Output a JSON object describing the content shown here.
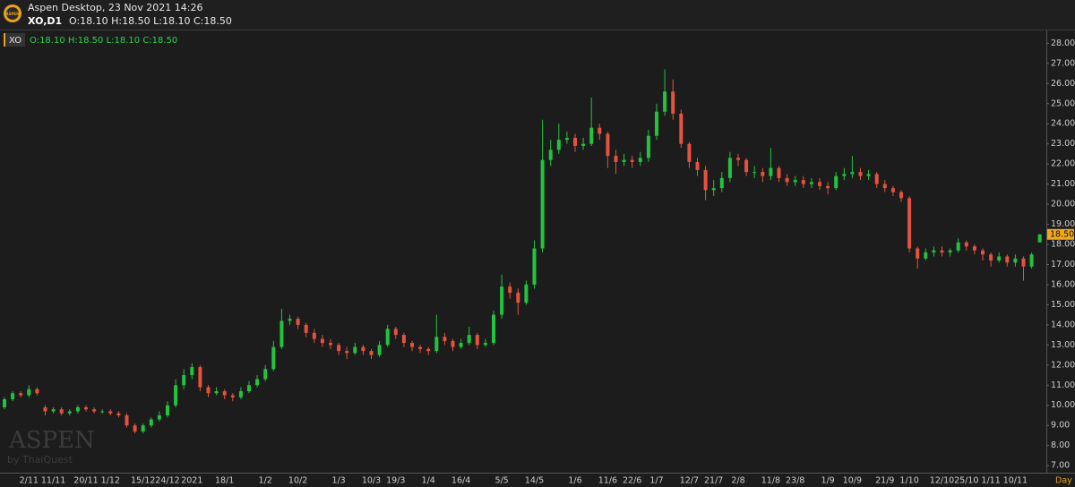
{
  "header": {
    "logo_text": "ASPEN",
    "app": "Aspen Desktop, 23 Nov 2021 14:26",
    "symbol": "XO,D1",
    "ohlc": "O:18.10 H:18.50 L:18.10 C:18.50"
  },
  "chart_data": {
    "type": "candlestick",
    "symbol_tag": "XO",
    "legend_ohlc": "O:18.10 H:18.50 L:18.10 C:18.50",
    "last_price": {
      "value": 18.5,
      "label": "18.50"
    },
    "period_label": "Day",
    "watermark": "ASPEN",
    "watermark_sub": "by ThaiQuest",
    "up_color": "#22c43f",
    "down_color": "#e5533f",
    "categories": [
      null,
      null,
      null,
      "2/11",
      null,
      null,
      "11/11",
      null,
      null,
      null,
      "20/11",
      null,
      null,
      "1/12",
      null,
      null,
      null,
      "15/12",
      null,
      null,
      "24/12",
      null,
      null,
      "2021",
      null,
      null,
      null,
      "18/1",
      null,
      null,
      null,
      null,
      "1/2",
      null,
      null,
      null,
      "10/2",
      null,
      null,
      null,
      null,
      "1/3",
      null,
      null,
      null,
      "10/3",
      null,
      null,
      "19/3",
      null,
      null,
      null,
      "1/4",
      null,
      null,
      null,
      "16/4",
      null,
      null,
      null,
      null,
      "5/5",
      null,
      null,
      null,
      "14/5",
      null,
      null,
      null,
      null,
      "1/6",
      null,
      null,
      null,
      "11/6",
      null,
      null,
      "22/6",
      null,
      null,
      "1/7",
      null,
      null,
      null,
      "12/7",
      null,
      null,
      "21/7",
      null,
      null,
      "2/8",
      null,
      null,
      null,
      "11/8",
      null,
      null,
      "23/8",
      null,
      null,
      null,
      "1/9",
      null,
      null,
      "10/9",
      null,
      null,
      null,
      "21/9",
      null,
      null,
      "1/10",
      null,
      null,
      null,
      "12/10",
      null,
      null,
      "25/10",
      null,
      null,
      "1/11",
      null,
      null,
      "10/11",
      null,
      null,
      null
    ],
    "open": [
      9.9,
      10.3,
      10.6,
      10.5,
      10.8,
      9.9,
      9.7,
      9.8,
      9.6,
      9.7,
      9.9,
      9.8,
      9.7,
      9.7,
      9.6,
      9.5,
      9.0,
      8.7,
      9.0,
      9.3,
      9.5,
      10.0,
      11.0,
      11.5,
      11.9,
      10.9,
      10.6,
      10.7,
      10.5,
      10.4,
      10.7,
      11.0,
      11.3,
      11.8,
      12.9,
      14.2,
      14.3,
      14.0,
      13.6,
      13.3,
      13.1,
      13.0,
      12.7,
      12.6,
      12.9,
      12.7,
      12.5,
      13.0,
      13.8,
      13.5,
      13.1,
      12.9,
      12.8,
      12.7,
      13.4,
      13.2,
      12.9,
      13.1,
      13.5,
      13.0,
      13.1,
      14.5,
      15.9,
      15.6,
      15.1,
      16.0,
      17.8,
      22.2,
      22.7,
      23.2,
      23.3,
      22.9,
      23.0,
      23.8,
      23.5,
      22.4,
      22.1,
      22.2,
      22.1,
      22.3,
      23.4,
      24.6,
      25.6,
      24.5,
      23.0,
      22.1,
      21.7,
      20.7,
      20.8,
      21.3,
      22.3,
      22.2,
      21.6,
      21.6,
      21.4,
      21.8,
      21.3,
      21.1,
      21.2,
      21.0,
      21.1,
      20.9,
      20.8,
      21.4,
      21.5,
      21.6,
      21.4,
      21.5,
      21.0,
      20.8,
      20.6,
      20.3,
      17.8,
      17.3,
      17.6,
      17.7,
      17.6,
      17.7,
      18.1,
      17.9,
      17.7,
      17.5,
      17.2,
      17.4,
      17.1,
      17.3,
      16.9,
      18.1
    ],
    "high": [
      10.4,
      10.7,
      10.7,
      11.0,
      10.9,
      10.0,
      9.9,
      9.9,
      9.8,
      10.0,
      10.0,
      9.9,
      9.8,
      9.8,
      9.7,
      9.6,
      9.1,
      9.1,
      9.4,
      9.7,
      10.2,
      11.3,
      11.8,
      12.1,
      12.0,
      11.0,
      10.9,
      10.8,
      10.6,
      10.9,
      11.2,
      11.5,
      12.0,
      13.2,
      14.8,
      14.5,
      14.4,
      14.1,
      13.8,
      13.5,
      13.3,
      13.1,
      12.9,
      13.1,
      13.0,
      12.8,
      13.2,
      14.0,
      13.9,
      13.6,
      13.2,
      13.0,
      12.9,
      14.5,
      13.6,
      13.3,
      13.3,
      13.9,
      13.6,
      13.3,
      14.7,
      16.5,
      16.1,
      15.8,
      16.2,
      18.2,
      24.2,
      23.2,
      24.0,
      23.6,
      23.5,
      23.3,
      25.3,
      24.0,
      23.6,
      22.7,
      22.5,
      22.4,
      22.6,
      23.7,
      25.0,
      26.7,
      26.2,
      24.7,
      23.1,
      22.3,
      21.9,
      21.2,
      21.6,
      22.6,
      22.5,
      22.3,
      21.9,
      21.8,
      22.8,
      21.9,
      21.5,
      21.4,
      21.4,
      21.3,
      21.3,
      21.1,
      21.6,
      21.8,
      22.4,
      21.8,
      21.7,
      21.6,
      21.2,
      20.9,
      20.7,
      20.4,
      17.9,
      17.8,
      17.9,
      17.9,
      17.8,
      18.3,
      18.2,
      18.0,
      17.8,
      17.6,
      17.6,
      17.5,
      17.5,
      17.4,
      17.6,
      18.5
    ],
    "low": [
      9.8,
      10.2,
      10.4,
      10.4,
      10.5,
      9.5,
      9.6,
      9.5,
      9.5,
      9.6,
      9.7,
      9.6,
      9.6,
      9.5,
      9.4,
      8.9,
      8.6,
      8.6,
      8.9,
      9.2,
      9.4,
      9.9,
      10.8,
      11.3,
      10.7,
      10.4,
      10.5,
      10.3,
      10.2,
      10.3,
      10.6,
      10.9,
      11.2,
      11.7,
      12.8,
      14.0,
      13.8,
      13.4,
      13.1,
      12.9,
      12.8,
      12.5,
      12.3,
      12.5,
      12.5,
      12.3,
      12.4,
      12.9,
      13.3,
      12.9,
      12.7,
      12.6,
      12.5,
      12.6,
      13.0,
      12.7,
      12.8,
      13.0,
      12.8,
      12.9,
      13.0,
      14.3,
      15.3,
      14.5,
      15.0,
      15.8,
      17.6,
      21.9,
      22.5,
      23.0,
      22.6,
      22.7,
      22.9,
      23.2,
      21.8,
      21.5,
      21.9,
      21.8,
      21.9,
      22.1,
      23.2,
      24.4,
      24.2,
      22.8,
      21.8,
      21.4,
      20.2,
      20.4,
      20.6,
      21.1,
      21.9,
      21.4,
      21.3,
      21.1,
      21.2,
      21.1,
      20.9,
      20.9,
      20.8,
      20.8,
      20.7,
      20.5,
      20.7,
      21.2,
      21.3,
      21.2,
      21.2,
      20.8,
      20.6,
      20.4,
      20.1,
      17.6,
      16.8,
      17.2,
      17.4,
      17.4,
      17.4,
      17.6,
      17.7,
      17.5,
      17.2,
      16.9,
      17.1,
      16.9,
      16.9,
      16.2,
      16.8,
      18.1
    ],
    "close": [
      10.3,
      10.6,
      10.5,
      10.8,
      10.6,
      9.7,
      9.8,
      9.6,
      9.7,
      9.9,
      9.8,
      9.7,
      9.7,
      9.6,
      9.5,
      9.0,
      8.7,
      9.0,
      9.3,
      9.5,
      10.0,
      11.0,
      11.5,
      11.9,
      10.9,
      10.6,
      10.7,
      10.5,
      10.4,
      10.7,
      11.0,
      11.3,
      11.8,
      12.9,
      14.2,
      14.3,
      14.0,
      13.6,
      13.3,
      13.1,
      13.0,
      12.7,
      12.6,
      12.9,
      12.7,
      12.5,
      13.0,
      13.8,
      13.5,
      13.1,
      12.9,
      12.8,
      12.7,
      13.4,
      13.2,
      12.9,
      13.1,
      13.5,
      13.0,
      13.1,
      14.5,
      15.9,
      15.6,
      15.1,
      16.0,
      17.8,
      22.2,
      22.7,
      23.2,
      23.3,
      22.9,
      23.0,
      23.8,
      23.5,
      22.4,
      22.1,
      22.2,
      22.1,
      22.3,
      23.4,
      24.6,
      25.6,
      24.5,
      23.0,
      22.1,
      21.7,
      20.7,
      20.8,
      21.3,
      22.3,
      22.2,
      21.6,
      21.6,
      21.4,
      21.8,
      21.3,
      21.1,
      21.2,
      21.0,
      21.1,
      20.9,
      20.8,
      21.4,
      21.5,
      21.6,
      21.4,
      21.5,
      21.0,
      20.8,
      20.6,
      20.3,
      17.8,
      17.3,
      17.6,
      17.7,
      17.6,
      17.7,
      18.1,
      17.9,
      17.7,
      17.5,
      17.2,
      17.4,
      17.1,
      17.3,
      16.9,
      17.5,
      18.5
    ],
    "ylim": [
      6.65,
      28.55
    ],
    "yticks": [
      {
        "value": 7,
        "label": "7.00"
      },
      {
        "value": 8,
        "label": "8.00"
      },
      {
        "value": 9,
        "label": "9.00"
      },
      {
        "value": 10,
        "label": "10.00"
      },
      {
        "value": 11,
        "label": "11.00"
      },
      {
        "value": 12,
        "label": "12.00"
      },
      {
        "value": 13,
        "label": "13.00"
      },
      {
        "value": 14,
        "label": "14.00"
      },
      {
        "value": 15,
        "label": "15.00"
      },
      {
        "value": 16,
        "label": "16.00"
      },
      {
        "value": 17,
        "label": "17.00"
      },
      {
        "value": 18,
        "label": "18.00"
      },
      {
        "value": 19,
        "label": "19.00"
      },
      {
        "value": 20,
        "label": "20.00"
      },
      {
        "value": 21,
        "label": "21.00"
      },
      {
        "value": 22,
        "label": "22.00"
      },
      {
        "value": 23,
        "label": "23.00"
      },
      {
        "value": 24,
        "label": "24.00"
      },
      {
        "value": 25,
        "label": "25.00"
      },
      {
        "value": 26,
        "label": "26.00"
      },
      {
        "value": 27,
        "label": "27.00"
      },
      {
        "value": 28,
        "label": "28.00"
      }
    ]
  }
}
